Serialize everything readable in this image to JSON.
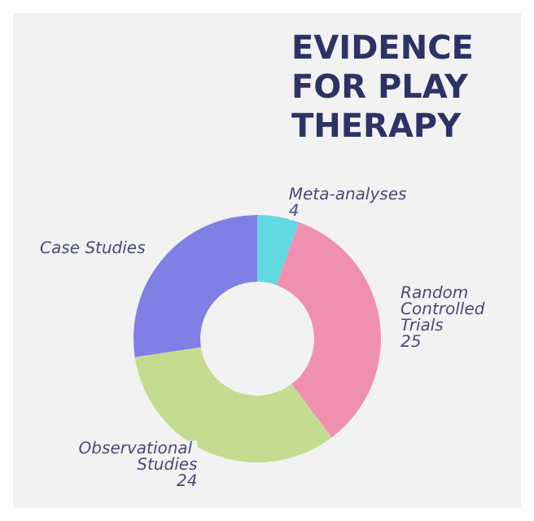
{
  "chart_data": {
    "type": "donut",
    "title": "EVIDENCE FOR PLAY THERAPY",
    "categories": [
      "Meta-analyses",
      "Random Controlled Trials",
      "Observational Studies",
      "Case Studies"
    ],
    "values": [
      4,
      25,
      24,
      20
    ],
    "value_labels": [
      "4",
      "25",
      "24",
      null
    ],
    "colors": [
      "#62d8e0",
      "#f090b0",
      "#c4dc90",
      "#7f7fe6"
    ],
    "legend": false
  }
}
